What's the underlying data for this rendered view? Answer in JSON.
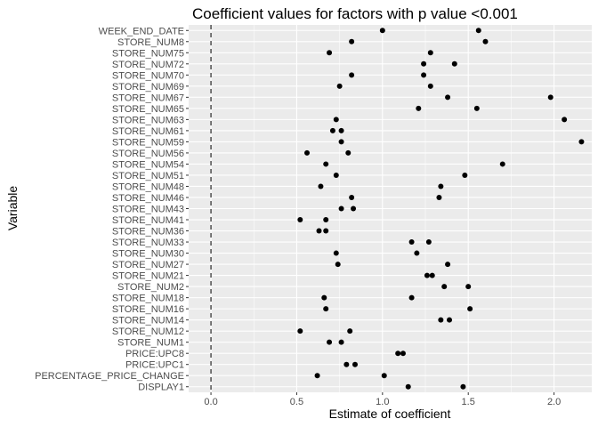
{
  "chart_data": {
    "type": "scatter",
    "title": "Coefficient values for factors with p value <0.001",
    "xlabel": "Estimate of coefficient",
    "ylabel": "Variable",
    "xlim": [
      -0.13,
      2.22
    ],
    "x_ticks": [
      "0.0",
      "0.5",
      "1.0",
      "1.5",
      "2.0"
    ],
    "reference_line": {
      "x": 0,
      "style": "dashed"
    },
    "grid": true,
    "background": "#ebebeb",
    "categories": [
      "DISPLAY1",
      "PERCENTAGE_PRICE_CHANGE",
      "PRICE:UPC1",
      "PRICE:UPC8",
      "STORE_NUM1",
      "STORE_NUM12",
      "STORE_NUM14",
      "STORE_NUM16",
      "STORE_NUM18",
      "STORE_NUM2",
      "STORE_NUM21",
      "STORE_NUM27",
      "STORE_NUM30",
      "STORE_NUM33",
      "STORE_NUM36",
      "STORE_NUM41",
      "STORE_NUM43",
      "STORE_NUM46",
      "STORE_NUM48",
      "STORE_NUM51",
      "STORE_NUM54",
      "STORE_NUM56",
      "STORE_NUM59",
      "STORE_NUM61",
      "STORE_NUM63",
      "STORE_NUM65",
      "STORE_NUM67",
      "STORE_NUM69",
      "STORE_NUM70",
      "STORE_NUM72",
      "STORE_NUM75",
      "STORE_NUM8",
      "WEEK_END_DATE"
    ],
    "points": [
      {
        "x": 1.47,
        "y": "DISPLAY1"
      },
      {
        "x": 1.15,
        "y": "DISPLAY1"
      },
      {
        "x": 1.01,
        "y": "PERCENTAGE_PRICE_CHANGE"
      },
      {
        "x": 0.62,
        "y": "PERCENTAGE_PRICE_CHANGE"
      },
      {
        "x": 0.84,
        "y": "PRICE:UPC1"
      },
      {
        "x": 0.79,
        "y": "PRICE:UPC1"
      },
      {
        "x": 1.09,
        "y": "PRICE:UPC8"
      },
      {
        "x": 1.12,
        "y": "PRICE:UPC8"
      },
      {
        "x": 0.76,
        "y": "STORE_NUM1"
      },
      {
        "x": 0.69,
        "y": "STORE_NUM1"
      },
      {
        "x": 0.81,
        "y": "STORE_NUM12"
      },
      {
        "x": 0.52,
        "y": "STORE_NUM12"
      },
      {
        "x": 1.39,
        "y": "STORE_NUM14"
      },
      {
        "x": 1.34,
        "y": "STORE_NUM14"
      },
      {
        "x": 1.51,
        "y": "STORE_NUM16"
      },
      {
        "x": 0.67,
        "y": "STORE_NUM16"
      },
      {
        "x": 1.17,
        "y": "STORE_NUM18"
      },
      {
        "x": 0.66,
        "y": "STORE_NUM18"
      },
      {
        "x": 1.36,
        "y": "STORE_NUM2"
      },
      {
        "x": 1.5,
        "y": "STORE_NUM2"
      },
      {
        "x": 1.29,
        "y": "STORE_NUM21"
      },
      {
        "x": 1.26,
        "y": "STORE_NUM21"
      },
      {
        "x": 0.74,
        "y": "STORE_NUM27"
      },
      {
        "x": 1.38,
        "y": "STORE_NUM27"
      },
      {
        "x": 0.73,
        "y": "STORE_NUM30"
      },
      {
        "x": 1.2,
        "y": "STORE_NUM30"
      },
      {
        "x": 1.27,
        "y": "STORE_NUM33"
      },
      {
        "x": 1.17,
        "y": "STORE_NUM33"
      },
      {
        "x": 0.63,
        "y": "STORE_NUM36"
      },
      {
        "x": 0.67,
        "y": "STORE_NUM36"
      },
      {
        "x": 0.52,
        "y": "STORE_NUM41"
      },
      {
        "x": 0.67,
        "y": "STORE_NUM41"
      },
      {
        "x": 0.76,
        "y": "STORE_NUM43"
      },
      {
        "x": 0.83,
        "y": "STORE_NUM43"
      },
      {
        "x": 1.33,
        "y": "STORE_NUM46"
      },
      {
        "x": 0.82,
        "y": "STORE_NUM46"
      },
      {
        "x": 0.64,
        "y": "STORE_NUM48"
      },
      {
        "x": 1.34,
        "y": "STORE_NUM48"
      },
      {
        "x": 1.48,
        "y": "STORE_NUM51"
      },
      {
        "x": 0.73,
        "y": "STORE_NUM51"
      },
      {
        "x": 1.7,
        "y": "STORE_NUM54"
      },
      {
        "x": 0.67,
        "y": "STORE_NUM54"
      },
      {
        "x": 0.56,
        "y": "STORE_NUM56"
      },
      {
        "x": 0.8,
        "y": "STORE_NUM56"
      },
      {
        "x": 0.76,
        "y": "STORE_NUM59"
      },
      {
        "x": 2.16,
        "y": "STORE_NUM59"
      },
      {
        "x": 0.76,
        "y": "STORE_NUM61"
      },
      {
        "x": 0.71,
        "y": "STORE_NUM61"
      },
      {
        "x": 0.73,
        "y": "STORE_NUM63"
      },
      {
        "x": 2.06,
        "y": "STORE_NUM63"
      },
      {
        "x": 1.21,
        "y": "STORE_NUM65"
      },
      {
        "x": 1.55,
        "y": "STORE_NUM65"
      },
      {
        "x": 1.38,
        "y": "STORE_NUM67"
      },
      {
        "x": 1.98,
        "y": "STORE_NUM67"
      },
      {
        "x": 0.75,
        "y": "STORE_NUM69"
      },
      {
        "x": 1.28,
        "y": "STORE_NUM69"
      },
      {
        "x": 0.82,
        "y": "STORE_NUM70"
      },
      {
        "x": 1.24,
        "y": "STORE_NUM70"
      },
      {
        "x": 1.24,
        "y": "STORE_NUM72"
      },
      {
        "x": 1.42,
        "y": "STORE_NUM72"
      },
      {
        "x": 0.69,
        "y": "STORE_NUM75"
      },
      {
        "x": 1.28,
        "y": "STORE_NUM75"
      },
      {
        "x": 0.82,
        "y": "STORE_NUM8"
      },
      {
        "x": 1.6,
        "y": "STORE_NUM8"
      },
      {
        "x": 1.56,
        "y": "WEEK_END_DATE"
      },
      {
        "x": 1.0,
        "y": "WEEK_END_DATE"
      }
    ]
  }
}
